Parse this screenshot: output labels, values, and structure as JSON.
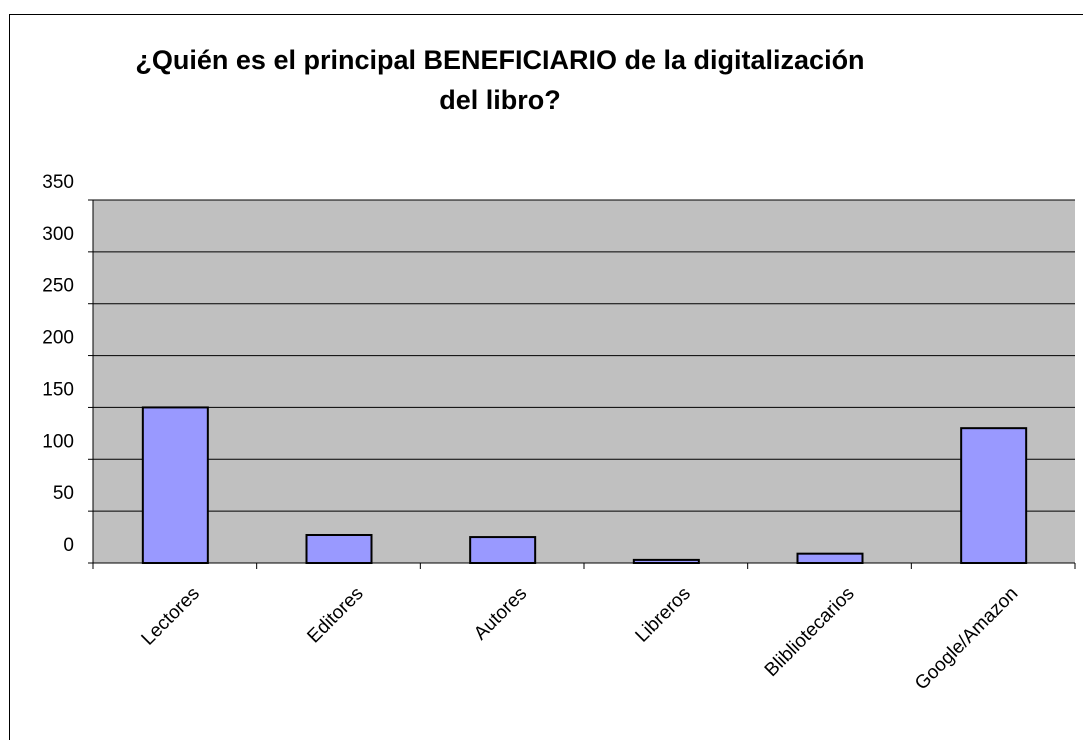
{
  "chart_data": {
    "type": "bar",
    "title": "¿Quién es el principal BENEFICIARIO de la digitalización del libro?",
    "categories": [
      "Lectores",
      "Editores",
      "Autores",
      "Libreros",
      "Blibliotecarios",
      "Google/Amazon"
    ],
    "values": [
      150,
      27,
      25,
      3,
      9,
      130
    ],
    "color": "#9999ff",
    "ylim": [
      0,
      350
    ],
    "yticks": [
      0,
      50,
      100,
      150,
      200,
      250,
      300,
      350
    ],
    "grid": true
  }
}
